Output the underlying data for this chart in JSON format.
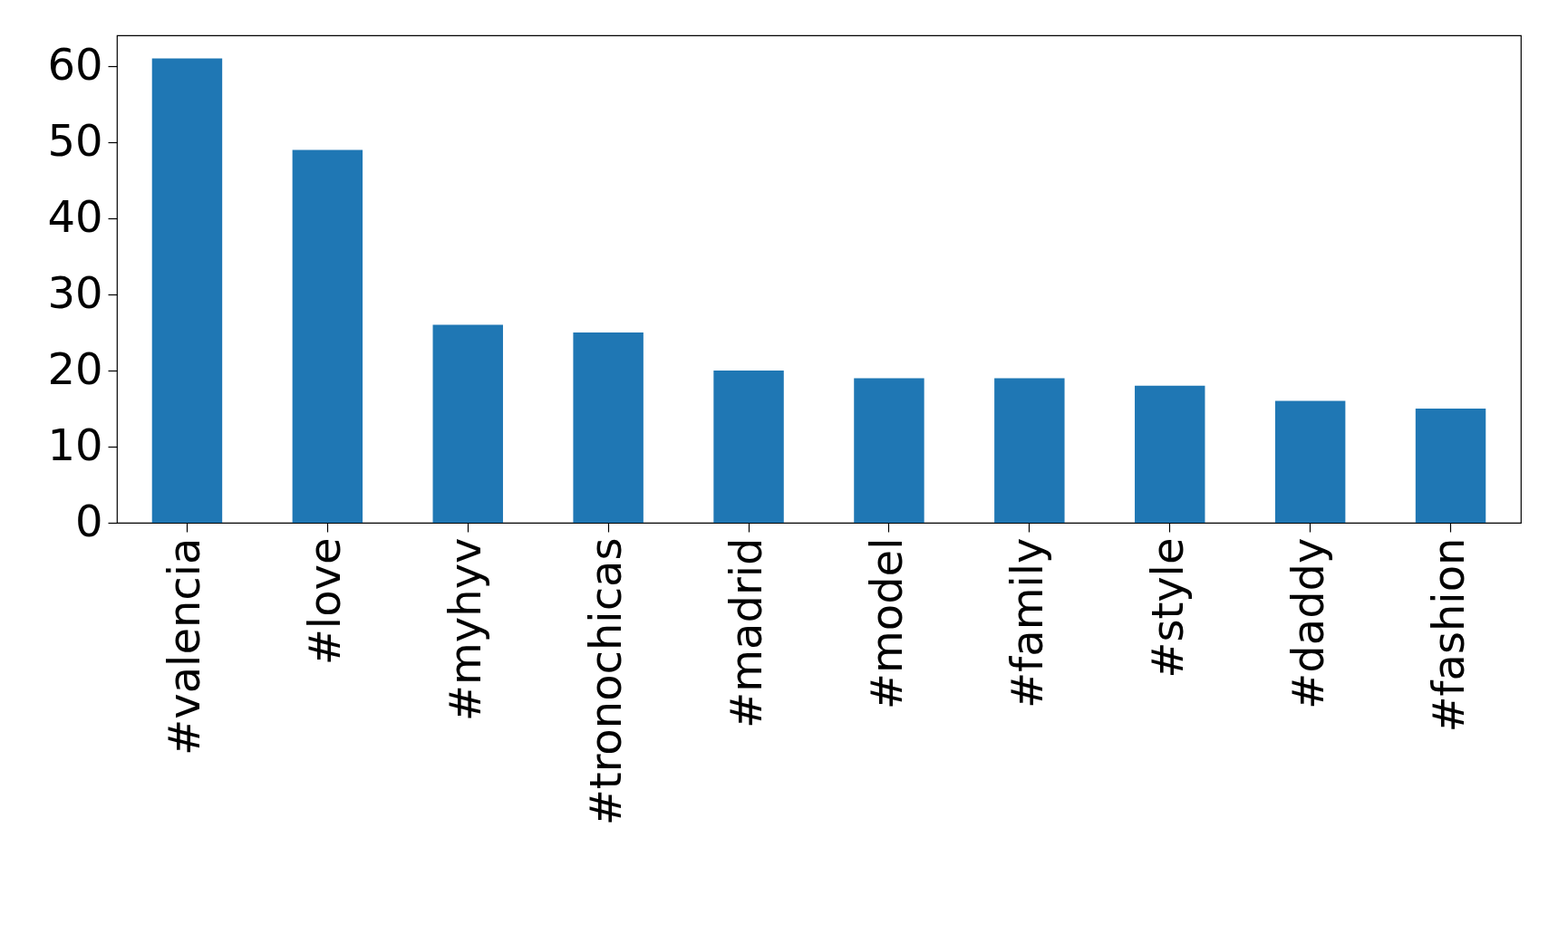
{
  "chart_data": {
    "type": "bar",
    "categories": [
      "#valencia",
      "#love",
      "#myhyv",
      "#tronochicas",
      "#madrid",
      "#model",
      "#family",
      "#style",
      "#daddy",
      "#fashion"
    ],
    "values": [
      61,
      49,
      26,
      25,
      20,
      19,
      19,
      18,
      16,
      15
    ],
    "color": "#1f77b4",
    "ylim": [
      0,
      64.05
    ],
    "yticks": [
      0,
      10,
      20,
      30,
      40,
      50,
      60
    ],
    "grid": false,
    "legend": false
  }
}
